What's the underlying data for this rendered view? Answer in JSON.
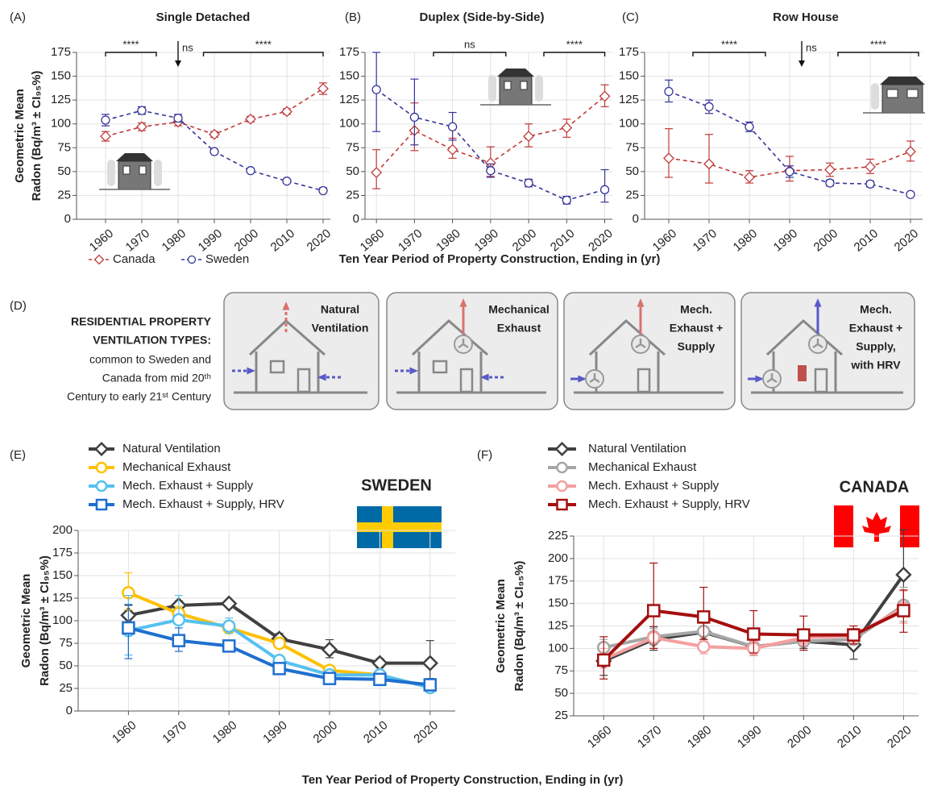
{
  "chart_data": [
    {
      "type": "line",
      "panel": "(A)",
      "title": "Single Detached",
      "ylabel": [
        "Geometric Mean",
        "Radon (Bq/m³ ± CI₉₅%)"
      ],
      "x": [
        1960,
        1970,
        1980,
        1990,
        2000,
        2010,
        2020
      ],
      "xlim": [
        1952,
        2022
      ],
      "ylim": [
        0,
        175
      ],
      "yticks": [
        0,
        25,
        50,
        75,
        100,
        125,
        150,
        175
      ],
      "grid": true,
      "line_style": "dashed",
      "brackets": [
        {
          "label": "****",
          "from": 1960,
          "to": 1974
        },
        {
          "label": "ns",
          "at": 1980
        },
        {
          "label": "****",
          "from": 1987,
          "to": 2020
        }
      ],
      "series": [
        {
          "name": "Canada",
          "color": "#c03a3a",
          "marker": "diamond",
          "values": [
            87,
            97,
            102,
            89,
            105,
            113,
            137
          ],
          "ci_low": [
            82,
            93,
            98,
            86,
            102,
            110,
            131
          ],
          "ci_high": [
            92,
            101,
            106,
            92,
            108,
            116,
            143
          ]
        },
        {
          "name": "Sweden",
          "color": "#35359a",
          "marker": "circle",
          "values": [
            104,
            114,
            106,
            71,
            51,
            40,
            30
          ],
          "ci_low": [
            98,
            110,
            102,
            69,
            50,
            39,
            28
          ],
          "ci_high": [
            110,
            118,
            110,
            73,
            52,
            41,
            33
          ]
        }
      ]
    },
    {
      "type": "line",
      "panel": "(B)",
      "title": "Duplex (Side-by-Side)",
      "x": [
        1960,
        1970,
        1980,
        1990,
        2000,
        2010,
        2020
      ],
      "xlim": [
        1957,
        2022
      ],
      "ylim": [
        0,
        175
      ],
      "yticks": [
        0,
        25,
        50,
        75,
        100,
        125,
        150,
        175
      ],
      "grid": true,
      "line_style": "dashed",
      "brackets": [
        {
          "label": "ns",
          "from": 1975,
          "to": 1994
        },
        {
          "label": "****",
          "from": 2004,
          "to": 2020
        }
      ],
      "series": [
        {
          "color": "#c03a3a",
          "marker": "diamond",
          "values": [
            49,
            93,
            73,
            59,
            87,
            96,
            129
          ],
          "ci_low": [
            32,
            72,
            64,
            45,
            76,
            86,
            118
          ],
          "ci_high": [
            73,
            122,
            85,
            76,
            100,
            105,
            141
          ]
        },
        {
          "color": "#35359a",
          "marker": "circle",
          "values": [
            136,
            107,
            97,
            51,
            38,
            20,
            31
          ],
          "ci_low": [
            92,
            78,
            83,
            44,
            34,
            16,
            18
          ],
          "ci_high": [
            175,
            147,
            112,
            58,
            42,
            24,
            52
          ]
        }
      ]
    },
    {
      "type": "line",
      "panel": "(C)",
      "title": "Row House",
      "x": [
        1960,
        1970,
        1980,
        1990,
        2000,
        2010,
        2020
      ],
      "xlim": [
        1954,
        2023
      ],
      "ylim": [
        0,
        175
      ],
      "yticks": [
        0,
        25,
        50,
        75,
        100,
        125,
        150,
        175
      ],
      "grid": true,
      "line_style": "dashed",
      "brackets": [
        {
          "label": "****",
          "from": 1966,
          "to": 1984
        },
        {
          "label": "ns",
          "at": 1993
        },
        {
          "label": "****",
          "from": 2002,
          "to": 2022
        }
      ],
      "series": [
        {
          "color": "#c03a3a",
          "marker": "diamond",
          "values": [
            64,
            58,
            44,
            51,
            52,
            55,
            71
          ],
          "ci_low": [
            44,
            38,
            38,
            40,
            45,
            48,
            61
          ],
          "ci_high": [
            95,
            89,
            51,
            66,
            59,
            63,
            82
          ]
        },
        {
          "color": "#35359a",
          "marker": "circle",
          "values": [
            134,
            118,
            97,
            50,
            38,
            37,
            26
          ],
          "ci_low": [
            123,
            111,
            92,
            44,
            35,
            34,
            24
          ],
          "ci_high": [
            146,
            125,
            102,
            56,
            41,
            40,
            28
          ]
        }
      ]
    },
    {
      "type": "line",
      "panel": "(E)",
      "annotation": "SWEDEN",
      "ylabel": [
        "Geometric Mean",
        "Radon (Bq/m³ ± CI₉₅%)"
      ],
      "x": [
        1960,
        1970,
        1980,
        1990,
        2000,
        2010,
        2020
      ],
      "xlim": [
        1950,
        2025
      ],
      "ylim": [
        0,
        200
      ],
      "yticks": [
        0,
        25,
        50,
        75,
        100,
        125,
        150,
        175,
        200
      ],
      "grid": true,
      "line_style": "solid",
      "series": [
        {
          "name": "Natural Ventilation",
          "color": "#404040",
          "marker": "diamond",
          "values": [
            106,
            117,
            119,
            80,
            68,
            53,
            53
          ],
          "ci_low": [
            96,
            112,
            116,
            74,
            59,
            48,
            36
          ],
          "ci_high": [
            117,
            122,
            122,
            86,
            79,
            58,
            78
          ]
        },
        {
          "name": "Mechanical Exhaust",
          "color": "#ffc000",
          "marker": "circle",
          "values": [
            131,
            108,
            92,
            75,
            45,
            40,
            26
          ],
          "ci_low": [
            112,
            100,
            88,
            70,
            43,
            38,
            22
          ],
          "ci_high": [
            153,
            116,
            96,
            80,
            47,
            42,
            30
          ]
        },
        {
          "name": "Mech. Exhaust + Supply",
          "color": "#56c1f0",
          "marker": "circle",
          "values": [
            89,
            101,
            94,
            56,
            40,
            40,
            26
          ],
          "ci_low": [
            62,
            80,
            86,
            52,
            38,
            37,
            23
          ],
          "ci_high": [
            128,
            128,
            103,
            60,
            42,
            43,
            29
          ]
        },
        {
          "name": "Mech. Exhaust + Supply, HRV",
          "color": "#1e6fd0",
          "marker": "square",
          "values": [
            92,
            78,
            72,
            47,
            36,
            35,
            29
          ],
          "ci_low": [
            58,
            66,
            68,
            44,
            34,
            33,
            26
          ],
          "ci_high": [
            118,
            92,
            76,
            50,
            38,
            37,
            32
          ]
        }
      ]
    },
    {
      "type": "line",
      "panel": "(F)",
      "annotation": "CANADA",
      "ylabel": [
        "Geometric Mean",
        "Radon (Bq/m³ ± CI₉₅%)"
      ],
      "x": [
        1960,
        1970,
        1980,
        1990,
        2000,
        2010,
        2020
      ],
      "xlim": [
        1954,
        2023
      ],
      "ylim": [
        25,
        225
      ],
      "yticks": [
        25,
        50,
        75,
        100,
        125,
        150,
        175,
        200,
        225
      ],
      "grid": true,
      "line_style": "solid",
      "series": [
        {
          "name": "Natural Ventilation",
          "color": "#404040",
          "marker": "diamond",
          "values": [
            86,
            110,
            118,
            102,
            108,
            104,
            182
          ],
          "ci_low": [
            70,
            98,
            108,
            92,
            100,
            88,
            150
          ],
          "ci_high": [
            106,
            124,
            128,
            112,
            116,
            122,
            232
          ]
        },
        {
          "name": "Mechanical Exhaust",
          "color": "#a6a6a6",
          "marker": "circle",
          "values": [
            101,
            113,
            119,
            102,
            108,
            110,
            148
          ],
          "ci_low": [
            92,
            104,
            110,
            95,
            102,
            104,
            130
          ],
          "ci_high": [
            110,
            122,
            128,
            109,
            114,
            116,
            168
          ]
        },
        {
          "name": "Mech. Exhaust + Supply",
          "color": "#f4a0a0",
          "marker": "circle",
          "values": [
            88,
            112,
            102,
            100,
            112,
            114,
            145
          ],
          "ci_low": [
            78,
            100,
            94,
            92,
            104,
            106,
            128
          ],
          "ci_high": [
            100,
            125,
            110,
            108,
            120,
            122,
            164
          ]
        },
        {
          "name": "Mech. Exhaust + Supply, HRV",
          "color": "#a50f0f",
          "marker": "square",
          "values": [
            87,
            142,
            135,
            116,
            115,
            115,
            142
          ],
          "ci_low": [
            66,
            100,
            110,
            95,
            98,
            105,
            118
          ],
          "ci_high": [
            113,
            195,
            168,
            142,
            136,
            125,
            165
          ]
        }
      ]
    }
  ],
  "figure": {
    "top_xlabel": "Ten Year Period of Property Construction, Ending in (yr)",
    "bottom_xlabel": "Ten Year Period of Property Construction, Ending in (yr)"
  },
  "ventilation_panel": {
    "panel": "(D)",
    "heading": [
      "RESIDENTIAL PROPERTY",
      "VENTILATION TYPES:"
    ],
    "description": [
      "common to Sweden and",
      "Canada from mid 20ᵗʰ",
      "Century to early 21ˢᵗ Century"
    ],
    "types": [
      [
        "Natural",
        "Ventilation"
      ],
      [
        "Mechanical",
        "Exhaust"
      ],
      [
        "Mech.",
        "Exhaust +",
        "Supply"
      ],
      [
        "Mech.",
        "Exhaust +",
        "Supply,",
        "with HRV"
      ]
    ]
  }
}
